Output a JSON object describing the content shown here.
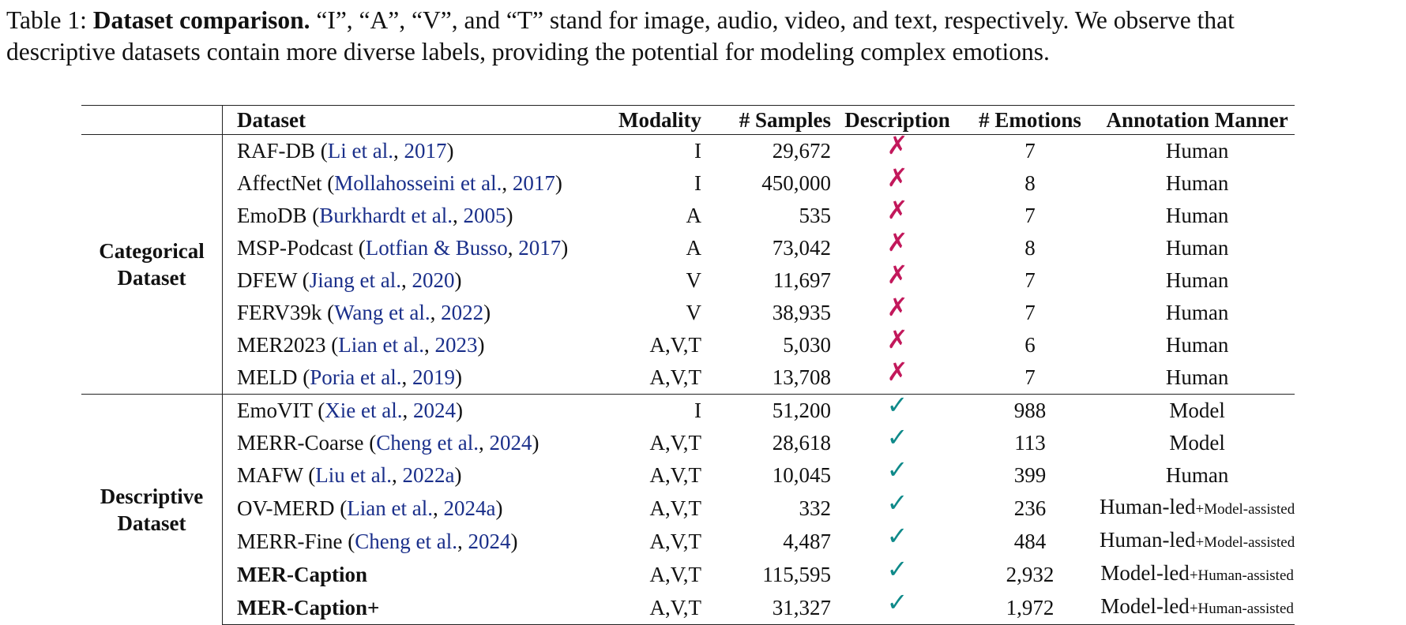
{
  "caption": {
    "label": "Table 1: ",
    "title": "Dataset comparison.",
    "text": " “I”, “A”, “V”, and “T” stand for image, audio, video, and text, respectively. We observe that",
    "line2": "descriptive datasets contain more diverse labels, providing the potential for modeling complex emotions."
  },
  "headers": {
    "group": "",
    "dataset": "Dataset",
    "modality": "Modality",
    "samples": "# Samples",
    "description": "Description",
    "emotions": "# Emotions",
    "annotation": "Annotation Manner"
  },
  "marks": {
    "no": "✗",
    "yes": "✓",
    "no_color": "#c2185b",
    "yes_color": "#0f8a8a",
    "cite_color": "#1a2f8a"
  },
  "groups": {
    "categorical": {
      "line1": "Categorical",
      "line2": "Dataset"
    },
    "descriptive": {
      "line1": "Descriptive",
      "line2": "Dataset"
    }
  },
  "categorical_rows": [
    {
      "name": "RAF-DB",
      "cite_authors": "Li et al.",
      "cite_year": "2017",
      "modality": "I",
      "samples": "29,672",
      "emotions": "7",
      "annotation": "Human"
    },
    {
      "name": "AffectNet",
      "cite_authors": "Mollahosseini et al.",
      "cite_year": "2017",
      "modality": "I",
      "samples": "450,000",
      "emotions": "8",
      "annotation": "Human"
    },
    {
      "name": "EmoDB",
      "cite_authors": "Burkhardt et al.",
      "cite_year": "2005",
      "modality": "A",
      "samples": "535",
      "emotions": "7",
      "annotation": "Human"
    },
    {
      "name": "MSP-Podcast",
      "cite_authors": "Lotfian & Busso",
      "cite_year": "2017",
      "modality": "A",
      "samples": "73,042",
      "emotions": "8",
      "annotation": "Human"
    },
    {
      "name": "DFEW",
      "cite_authors": "Jiang et al.",
      "cite_year": "2020",
      "modality": "V",
      "samples": "11,697",
      "emotions": "7",
      "annotation": "Human"
    },
    {
      "name": "FERV39k",
      "cite_authors": "Wang et al.",
      "cite_year": "2022",
      "modality": "V",
      "samples": "38,935",
      "emotions": "7",
      "annotation": "Human"
    },
    {
      "name": "MER2023",
      "cite_authors": "Lian et al.",
      "cite_year": "2023",
      "modality": "A,V,T",
      "samples": "5,030",
      "emotions": "6",
      "annotation": "Human"
    },
    {
      "name": "MELD",
      "cite_authors": "Poria et al.",
      "cite_year": "2019",
      "modality": "A,V,T",
      "samples": "13,708",
      "emotions": "7",
      "annotation": "Human"
    }
  ],
  "descriptive_rows": [
    {
      "name": "EmoVIT",
      "cite_authors": "Xie et al.",
      "cite_year": "2024",
      "modality": "I",
      "samples": "51,200",
      "emotions": "988",
      "annotation": "Model",
      "annotation_sub": ""
    },
    {
      "name": "MERR-Coarse",
      "cite_authors": "Cheng et al.",
      "cite_year": "2024",
      "modality": "A,V,T",
      "samples": "28,618",
      "emotions": "113",
      "annotation": "Model",
      "annotation_sub": ""
    },
    {
      "name": "MAFW",
      "cite_authors": "Liu et al.",
      "cite_year": "2022a",
      "modality": "A,V,T",
      "samples": "10,045",
      "emotions": "399",
      "annotation": "Human",
      "annotation_sub": ""
    },
    {
      "name": "OV-MERD",
      "cite_authors": "Lian et al.",
      "cite_year": "2024a",
      "modality": "A,V,T",
      "samples": "332",
      "emotions": "236",
      "annotation": "Human-led",
      "annotation_sub": "+Model-assisted"
    },
    {
      "name": "MERR-Fine",
      "cite_authors": "Cheng et al.",
      "cite_year": "2024",
      "modality": "A,V,T",
      "samples": "4,487",
      "emotions": "484",
      "annotation": "Human-led",
      "annotation_sub": "+Model-assisted"
    },
    {
      "name": "MER-Caption",
      "cite_authors": "",
      "cite_year": "",
      "modality": "A,V,T",
      "samples": "115,595",
      "emotions": "2,932",
      "annotation": "Model-led",
      "annotation_sub": "+Human-assisted",
      "bold": true
    },
    {
      "name": "MER-Caption+",
      "cite_authors": "",
      "cite_year": "",
      "modality": "A,V,T",
      "samples": "31,327",
      "emotions": "1,972",
      "annotation": "Model-led",
      "annotation_sub": "+Human-assisted",
      "bold": true
    }
  ]
}
